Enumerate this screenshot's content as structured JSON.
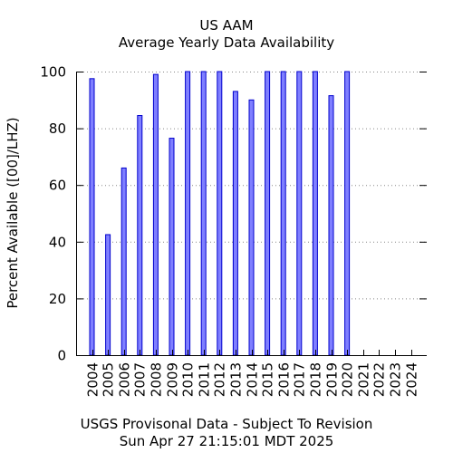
{
  "title": "US AAM",
  "subtitle": "Average Yearly Data Availability",
  "footer": {
    "line1": "USGS Provisonal Data - Subject To Revision",
    "line2": "Sun Apr 27 21:15:01 MDT 2025"
  },
  "chart_data": {
    "type": "bar",
    "title": "US AAM",
    "subtitle": "Average Yearly Data Availability",
    "xlabel": "",
    "ylabel": "Percent Available ([00]/LHZ)",
    "ylim": [
      0,
      100
    ],
    "yticks": [
      0,
      20,
      40,
      60,
      80,
      100
    ],
    "grid": "horizontal dotted",
    "bar_color": "#7f7fff",
    "bar_edge_color": "#0000cc",
    "categories": [
      "2004",
      "2005",
      "2006",
      "2007",
      "2008",
      "2009",
      "2010",
      "2011",
      "2012",
      "2013",
      "2014",
      "2015",
      "2016",
      "2017",
      "2018",
      "2019",
      "2020",
      "2021",
      "2022",
      "2023",
      "2024"
    ],
    "values": [
      97.5,
      42.5,
      66,
      84.5,
      99,
      76.5,
      100,
      100,
      100,
      93,
      90,
      100,
      100,
      100,
      100,
      91.5,
      100,
      null,
      null,
      null,
      null
    ]
  }
}
